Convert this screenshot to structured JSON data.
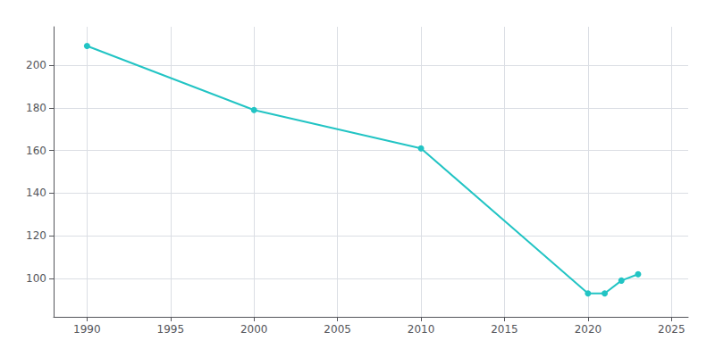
{
  "chart_data": {
    "type": "line",
    "x": [
      1990,
      2000,
      2010,
      2020,
      2021,
      2022,
      2023
    ],
    "values": [
      209,
      179,
      161,
      93,
      93,
      99,
      102
    ],
    "color": "#22c4c4",
    "marker": "circle",
    "xlim": [
      1988,
      2026
    ],
    "xticks": [
      1990,
      1995,
      2000,
      2005,
      2010,
      2015,
      2020,
      2025
    ],
    "ylim": [
      82,
      218
    ],
    "yticks": [
      100,
      120,
      140,
      160,
      180,
      200
    ],
    "grid": true
  }
}
